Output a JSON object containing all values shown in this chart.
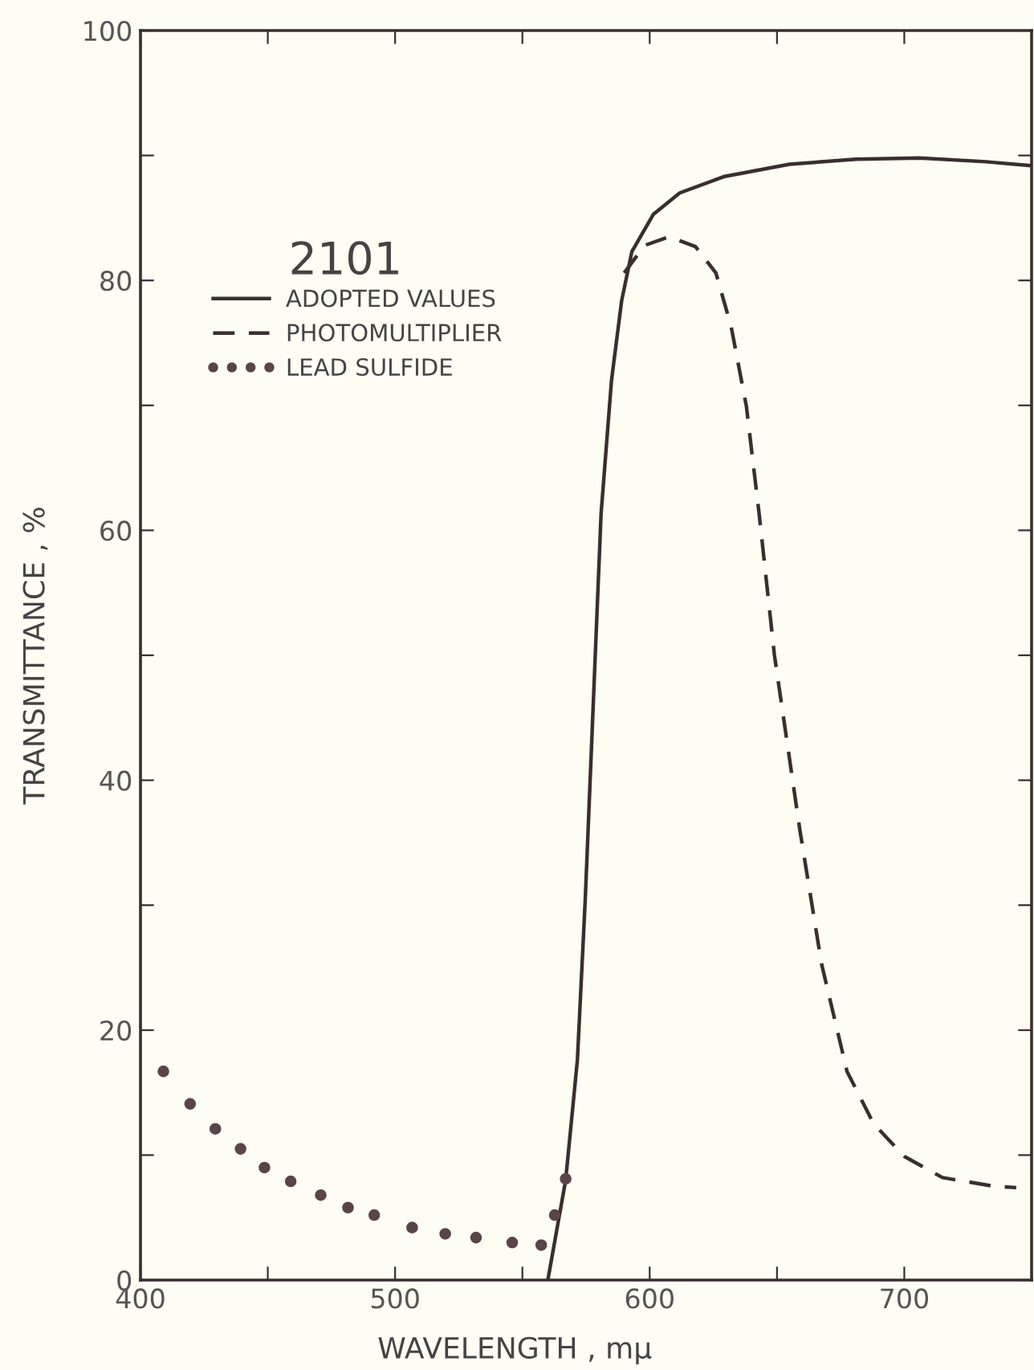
{
  "chart_data": {
    "type": "line",
    "xlabel": "WAVELENGTH , mμ",
    "ylabel": "TRANSMITTANCE , %",
    "annotations": [
      "2101"
    ],
    "xlim": [
      400,
      750
    ],
    "xticks": [
      400,
      {
        "value": 450,
        "label": null
      },
      500,
      {
        "value": 550,
        "label": null
      },
      600,
      {
        "value": 650,
        "label": null
      },
      700
    ],
    "ylim": [
      0,
      100
    ],
    "yticks": [
      0,
      {
        "value": 10,
        "label": null
      },
      20,
      {
        "value": 30,
        "label": null
      },
      40,
      {
        "value": 50,
        "label": null
      },
      60,
      {
        "value": 70,
        "label": null
      },
      80,
      {
        "value": 90,
        "label": null
      },
      100
    ],
    "grid": false,
    "legend": "top left",
    "series": [
      {
        "name": "ADOPTED VALUES",
        "line_style": "solid",
        "color": "#3a2e2e",
        "x": [
          560,
          567,
          571.6,
          574.7,
          578.4,
          580.9,
          585,
          589,
          593,
          601.5,
          611.8,
          629,
          655,
          681,
          706,
          732,
          749
        ],
        "values": [
          0,
          8,
          17.6,
          30.5,
          48.9,
          61.3,
          72,
          78.4,
          82.3,
          85.3,
          87,
          88.3,
          89.3,
          89.7,
          89.8,
          89.5,
          89.2
        ]
      },
      {
        "name": "PHOTOMULTIPLIER",
        "line_style": "dashed",
        "color": "#3a2e2e",
        "x": [
          590,
          598,
          607.7,
          618,
          626,
          632,
          638,
          643,
          649,
          659,
          667.5,
          677.5,
          688,
          700,
          715,
          735.5,
          744
        ],
        "values": [
          80.6,
          82.8,
          83.5,
          82.7,
          80.6,
          76.3,
          69.9,
          61.3,
          50,
          36,
          25.3,
          16.7,
          12.5,
          9.9,
          8.2,
          7.5,
          7.4
        ]
      },
      {
        "name": "LEAD SULFIDE",
        "type": "scatter",
        "marker": "circle",
        "color": "#5a4448",
        "x": [
          409,
          419.5,
          429.4,
          439.3,
          448.7,
          459,
          470.8,
          481.5,
          491.8,
          506.7,
          519.7,
          531.8,
          546,
          557.4,
          562.7,
          567
        ],
        "values": [
          16.7,
          14.1,
          12.1,
          10.5,
          9.0,
          7.9,
          6.8,
          5.8,
          5.2,
          4.2,
          3.7,
          3.4,
          3.0,
          2.8,
          5.2,
          8.1
        ]
      }
    ]
  }
}
